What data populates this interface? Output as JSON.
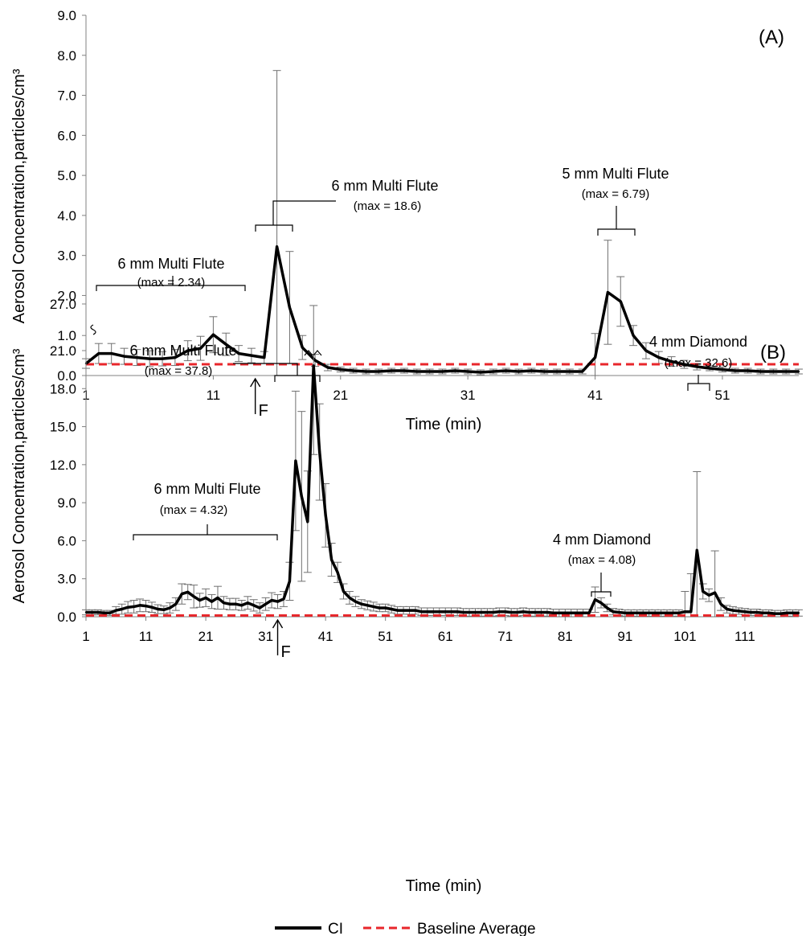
{
  "chart_data": [
    {
      "type": "line",
      "panel_label": "(A)",
      "xlabel": "Time (min)",
      "ylabel": "Aerosol Concentration,particles/cm³",
      "ylim": [
        0,
        9.0
      ],
      "yticks": [
        "0.0",
        "1.0",
        "2.0",
        "3.0",
        "4.0",
        "5.0",
        "6.0",
        "7.0",
        "8.0",
        "9.0"
      ],
      "xlim": [
        1,
        57
      ],
      "xticks": [
        1,
        11,
        21,
        31,
        41,
        51
      ],
      "fan_marker": {
        "label": "F",
        "x": 14.3
      },
      "baseline": 0.28,
      "series": [
        {
          "name": "CI",
          "x": [
            1,
            2,
            3,
            4,
            5,
            6,
            7,
            8,
            9,
            10,
            11,
            12,
            13,
            14,
            15,
            16,
            17,
            18,
            19,
            20,
            21,
            22,
            23,
            24,
            25,
            26,
            27,
            28,
            29,
            30,
            31,
            32,
            33,
            34,
            35,
            36,
            37,
            38,
            39,
            40,
            41,
            42,
            43,
            44,
            45,
            46,
            47,
            48,
            49,
            50,
            51,
            52,
            53,
            54,
            55,
            56,
            57
          ],
          "y": [
            0.3,
            0.55,
            0.55,
            0.48,
            0.45,
            0.42,
            0.42,
            0.45,
            0.62,
            0.68,
            1.02,
            0.78,
            0.55,
            0.5,
            0.45,
            3.22,
            1.7,
            0.7,
            0.38,
            0.2,
            0.15,
            0.12,
            0.1,
            0.1,
            0.12,
            0.12,
            0.1,
            0.1,
            0.1,
            0.12,
            0.1,
            0.08,
            0.1,
            0.12,
            0.1,
            0.12,
            0.1,
            0.1,
            0.1,
            0.1,
            0.45,
            2.08,
            1.85,
            1.0,
            0.62,
            0.45,
            0.35,
            0.28,
            0.22,
            0.18,
            0.15,
            0.12,
            0.12,
            0.1,
            0.1,
            0.1,
            0.1
          ],
          "err": [
            0.12,
            0.25,
            0.25,
            0.2,
            0.2,
            0.2,
            0.18,
            0.2,
            0.25,
            0.3,
            0.45,
            0.28,
            0.2,
            0.18,
            0.15,
            4.4,
            1.4,
            0.3,
            0.15,
            0.08,
            0.06,
            0.06,
            0.06,
            0.06,
            0.06,
            0.06,
            0.06,
            0.06,
            0.06,
            0.06,
            0.06,
            0.06,
            0.06,
            0.06,
            0.06,
            0.06,
            0.06,
            0.06,
            0.06,
            0.06,
            0.6,
            1.3,
            0.62,
            0.25,
            0.2,
            0.15,
            0.12,
            0.1,
            0.08,
            0.06,
            0.06,
            0.06,
            0.06,
            0.06,
            0.06,
            0.06,
            0.06
          ]
        },
        {
          "name": "Baseline Average",
          "y": 0.28
        }
      ],
      "annotations": [
        {
          "title": "6 mm Multi Flute",
          "max": "(max = 2.34)"
        },
        {
          "title": "6 mm Multi Flute",
          "max": "(max = 18.6)"
        },
        {
          "title": "5 mm Multi Flute",
          "max": "(max = 6.79)"
        }
      ]
    },
    {
      "type": "line",
      "panel_label": "(B)",
      "xlabel": "Time (min)",
      "ylabel": "Aerosol Concentration,particles/cm³",
      "ylim": [
        0,
        27.0
      ],
      "yticks": [
        "0.0",
        "3.0",
        "6.0",
        "9.0",
        "12.0",
        "15.0",
        "18.0",
        "21.0",
        "27.0"
      ],
      "axis_break": {
        "between": [
          "21.0",
          "27.0"
        ]
      },
      "xlim": [
        1,
        120
      ],
      "xticks": [
        1,
        11,
        21,
        31,
        41,
        51,
        61,
        71,
        81,
        91,
        101,
        111
      ],
      "fan_marker": {
        "label": "F",
        "x": 33
      },
      "baseline": 0.1,
      "series": [
        {
          "name": "CI",
          "x": [
            1,
            2,
            3,
            4,
            5,
            6,
            7,
            8,
            9,
            10,
            11,
            12,
            13,
            14,
            15,
            16,
            17,
            18,
            19,
            20,
            21,
            22,
            23,
            24,
            25,
            26,
            27,
            28,
            29,
            30,
            31,
            32,
            33,
            34,
            35,
            36,
            37,
            38,
            39,
            40,
            41,
            42,
            43,
            44,
            45,
            46,
            47,
            48,
            49,
            50,
            51,
            52,
            53,
            54,
            55,
            56,
            57,
            58,
            59,
            60,
            61,
            62,
            63,
            64,
            65,
            66,
            67,
            68,
            69,
            70,
            71,
            72,
            73,
            74,
            75,
            76,
            77,
            78,
            79,
            80,
            81,
            82,
            83,
            84,
            85,
            86,
            87,
            88,
            89,
            90,
            91,
            92,
            93,
            94,
            95,
            96,
            97,
            98,
            99,
            100,
            101,
            102,
            103,
            104,
            105,
            106,
            107,
            108,
            109,
            110,
            111,
            112,
            113,
            114,
            115,
            116,
            117,
            118,
            119,
            120
          ],
          "y": [
            0.35,
            0.35,
            0.35,
            0.3,
            0.3,
            0.5,
            0.6,
            0.75,
            0.8,
            0.9,
            0.85,
            0.75,
            0.6,
            0.55,
            0.7,
            1.0,
            1.8,
            1.95,
            1.6,
            1.3,
            1.5,
            1.2,
            1.5,
            1.1,
            1.0,
            1.0,
            0.9,
            1.1,
            0.9,
            0.7,
            1.0,
            1.3,
            1.2,
            1.4,
            2.8,
            12.3,
            9.5,
            7.5,
            19.8,
            13.0,
            8.0,
            4.5,
            3.5,
            2.0,
            1.5,
            1.2,
            1.0,
            0.9,
            0.8,
            0.7,
            0.7,
            0.6,
            0.5,
            0.5,
            0.5,
            0.5,
            0.4,
            0.4,
            0.4,
            0.4,
            0.4,
            0.4,
            0.4,
            0.35,
            0.35,
            0.35,
            0.35,
            0.35,
            0.35,
            0.4,
            0.4,
            0.35,
            0.35,
            0.4,
            0.35,
            0.35,
            0.35,
            0.35,
            0.3,
            0.3,
            0.3,
            0.3,
            0.3,
            0.3,
            0.3,
            1.35,
            1.1,
            0.7,
            0.4,
            0.35,
            0.3,
            0.3,
            0.3,
            0.3,
            0.3,
            0.3,
            0.3,
            0.3,
            0.3,
            0.3,
            0.4,
            0.4,
            5.25,
            2.0,
            1.7,
            1.9,
            1.0,
            0.6,
            0.5,
            0.45,
            0.4,
            0.35,
            0.35,
            0.3,
            0.3,
            0.25,
            0.25,
            0.3,
            0.3,
            0.3
          ],
          "err": [
            0.2,
            0.2,
            0.2,
            0.2,
            0.2,
            0.3,
            0.4,
            0.45,
            0.5,
            0.5,
            0.45,
            0.4,
            0.35,
            0.3,
            0.4,
            0.5,
            0.8,
            0.6,
            0.9,
            0.55,
            0.7,
            0.55,
            0.9,
            0.5,
            0.45,
            0.45,
            0.4,
            0.5,
            0.45,
            0.4,
            0.5,
            0.6,
            0.55,
            0.6,
            1.5,
            5.5,
            6.7,
            4.0,
            7.0,
            3.8,
            2.5,
            1.3,
            0.8,
            0.6,
            0.5,
            0.4,
            0.35,
            0.35,
            0.35,
            0.3,
            0.3,
            0.3,
            0.3,
            0.3,
            0.3,
            0.3,
            0.3,
            0.3,
            0.3,
            0.3,
            0.3,
            0.3,
            0.3,
            0.3,
            0.3,
            0.3,
            0.3,
            0.3,
            0.3,
            0.3,
            0.3,
            0.3,
            0.3,
            0.3,
            0.3,
            0.3,
            0.3,
            0.3,
            0.3,
            0.3,
            0.3,
            0.3,
            0.3,
            0.3,
            0.3,
            1.0,
            0.4,
            0.3,
            0.25,
            0.25,
            0.25,
            0.25,
            0.25,
            0.25,
            0.25,
            0.25,
            0.25,
            0.25,
            0.25,
            0.25,
            1.6,
            3.0,
            6.2,
            0.6,
            0.5,
            3.3,
            0.5,
            0.3,
            0.3,
            0.25,
            0.25,
            0.25,
            0.25,
            0.25,
            0.25,
            0.25,
            0.25,
            0.25,
            0.25,
            0.25
          ]
        },
        {
          "name": "Baseline Average",
          "y": 0.1
        }
      ],
      "annotations": [
        {
          "title": "6 mm Multi Flute",
          "max": "(max = 4.32)"
        },
        {
          "title": "6 mm Multi Flute",
          "max": "(max = 37.8)"
        },
        {
          "title": "4 mm Diamond",
          "max": "(max = 4.08)"
        },
        {
          "title": "4 mm Diamond",
          "max": "(max = 32.6)"
        }
      ]
    }
  ],
  "legend": [
    {
      "label": "CI",
      "color": "#000000",
      "style": "solid"
    },
    {
      "label": "Baseline Average",
      "color": "#e8262b",
      "style": "dashed"
    }
  ],
  "colors": {
    "series": "#000000",
    "baseline": "#e8262b",
    "error_bars": "#707070",
    "axis": "#808080"
  }
}
